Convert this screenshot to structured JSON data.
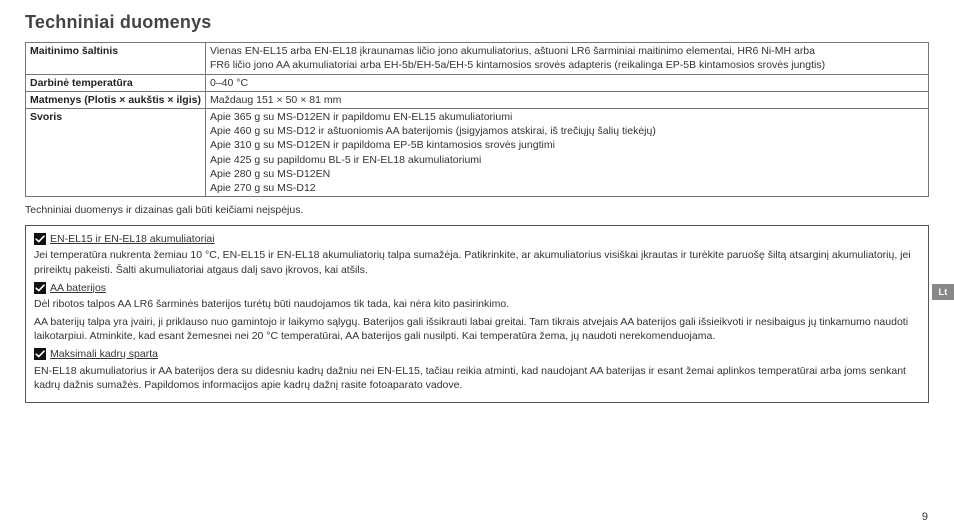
{
  "title": "Techniniai duomenys",
  "table": {
    "rows": [
      {
        "label": "Maitinimo šaltinis",
        "lines": [
          "Vienas EN-EL15 arba EN-EL18 įkraunamas ličio jono akumuliatorius, aštuoni LR6 šarminiai maitinimo elementai, HR6 Ni-MH arba",
          "FR6 ličio jono AA akumuliatoriai arba EH-5b/EH-5a/EH-5 kintamosios srovės adapteris (reikalinga EP-5B kintamosios srovės jungtis)"
        ]
      },
      {
        "label": "Darbinė temperatūra",
        "lines": [
          "0–40 °C"
        ]
      },
      {
        "label": "Matmenys (Plotis × aukštis × ilgis)",
        "lines": [
          "Maždaug 151 × 50 × 81 mm"
        ]
      },
      {
        "label": "Svoris",
        "lines": [
          "Apie 365 g su MS-D12EN ir papildomu EN-EL15 akumuliatoriumi",
          "Apie 460 g su MS-D12 ir aštuoniomis AA baterijomis (įsigyjamos atskirai, iš trečiųjų šalių tiekėjų)",
          "Apie 310 g su MS-D12EN ir papildoma EP-5B kintamosios srovės jungtimi",
          "Apie 425 g su papildomu BL-5 ir EN-EL18 akumuliatoriumi",
          "Apie 280 g su MS-D12EN",
          "Apie 270 g su MS-D12"
        ]
      }
    ]
  },
  "footnote": "Techniniai duomenys ir dizainas gali būti keičiami neįspėjus.",
  "box": {
    "sections": [
      {
        "title": "EN-EL15 ir EN-EL18 akumuliatoriai",
        "paras": [
          "Jei temperatūra nukrenta žemiau 10 °C, EN-EL15 ir EN-EL18 akumuliatorių talpa sumažėja. Patikrinkite, ar akumuliatorius visiškai įkrautas ir turėkite paruošę šiltą atsarginį akumuliatorių, jei prireiktų pakeisti. Šalti akumuliatoriai atgaus dalį savo įkrovos, kai atšils."
        ]
      },
      {
        "title": "AA baterijos",
        "paras": [
          "Dėl ribotos talpos AA LR6 šarminės baterijos turėtų būti naudojamos tik tada, kai nėra kito pasirinkimo.",
          "AA baterijų talpa yra įvairi, ji priklauso nuo gamintojo ir laikymo sąlygų. Baterijos gali išsikrauti labai greitai. Tam tikrais atvejais AA baterijos gali išsieikvoti ir nesibaigus jų tinkamumo naudoti laikotarpiui. Atminkite, kad esant žemesnei nei 20 °C temperatūrai, AA baterijos gali nusilpti. Kai temperatūra žema, jų naudoti nerekomenduojama."
        ]
      },
      {
        "title": "Maksimali kadrų sparta",
        "paras": [
          "EN-EL18 akumuliatorius ir AA baterijos dera su didesniu kadrų dažniu nei EN-EL15, tačiau reikia atminti, kad naudojant AA baterijas ir esant žemai aplinkos temperatūrai arba joms senkant kadrų dažnis sumažės. Papildomos informacijos apie kadrų dažnį rasite fotoaparato vadove."
        ]
      }
    ]
  },
  "sideTab": "Lt",
  "pageNumber": "9"
}
